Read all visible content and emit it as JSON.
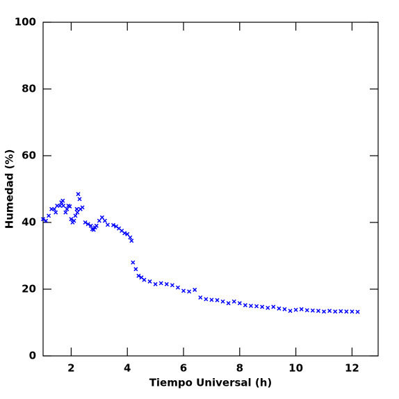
{
  "chart_data": {
    "type": "scatter",
    "xlabel": "Tiempo Universal (h)",
    "ylabel": "Humedad (%)",
    "xlim": [
      1,
      12.93
    ],
    "ylim": [
      0,
      100
    ],
    "xticks": [
      2,
      4,
      6,
      8,
      10,
      12
    ],
    "yticks": [
      0,
      20,
      40,
      60,
      80,
      100
    ],
    "color": "#0000ff",
    "series": [
      {
        "name": "Humedad",
        "x": [
          1.0,
          1.1,
          1.2,
          1.3,
          1.4,
          1.45,
          1.5,
          1.6,
          1.65,
          1.7,
          1.72,
          1.8,
          1.85,
          1.9,
          1.95,
          2.0,
          2.05,
          2.1,
          2.15,
          2.2,
          2.22,
          2.25,
          2.3,
          2.33,
          2.4,
          2.5,
          2.6,
          2.7,
          2.75,
          2.8,
          2.85,
          2.9,
          3.0,
          3.1,
          3.2,
          3.3,
          3.5,
          3.6,
          3.7,
          3.8,
          3.9,
          4.0,
          4.1,
          4.15,
          4.2,
          4.3,
          4.4,
          4.5,
          4.6,
          4.8,
          5.0,
          5.2,
          5.4,
          5.6,
          5.8,
          6.0,
          6.2,
          6.4,
          6.6,
          6.8,
          7.0,
          7.2,
          7.4,
          7.6,
          7.8,
          8.0,
          8.2,
          8.4,
          8.6,
          8.8,
          9.0,
          9.2,
          9.4,
          9.6,
          9.8,
          10.0,
          10.2,
          10.4,
          10.6,
          10.8,
          11.0,
          11.2,
          11.4,
          11.6,
          11.8,
          12.0,
          12.2
        ],
        "values": [
          41,
          40.5,
          42,
          44,
          44,
          43,
          45,
          45,
          46,
          46.5,
          45,
          43,
          44,
          45,
          44.8,
          41,
          40,
          40.5,
          42,
          44,
          43,
          48.5,
          47,
          44,
          44.5,
          40,
          39.5,
          39,
          38,
          37.8,
          38.5,
          39,
          40.5,
          41.5,
          40.5,
          39.3,
          39.2,
          38.8,
          38.2,
          37.5,
          36.8,
          36.5,
          35.5,
          34.5,
          28,
          26,
          24,
          23.5,
          22.8,
          22.3,
          21.5,
          21.8,
          21.5,
          21.2,
          20.5,
          19.5,
          19.3,
          19.8,
          17.5,
          17,
          16.8,
          16.7,
          16.3,
          15.8,
          16.3,
          15.8,
          15.2,
          15,
          14.9,
          14.7,
          14.4,
          14.7,
          14.2,
          14,
          13.5,
          13.8,
          14,
          13.7,
          13.6,
          13.5,
          13.3,
          13.5,
          13.3,
          13.4,
          13.3,
          13.3,
          13.2
        ]
      }
    ]
  }
}
